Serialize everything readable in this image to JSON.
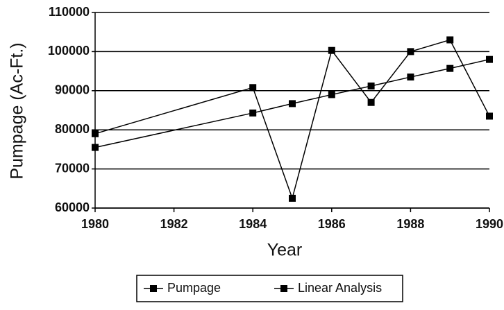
{
  "chart_data": {
    "type": "line",
    "x": [
      1980,
      1984,
      1985,
      1986,
      1987,
      1988,
      1989,
      1990
    ],
    "series": [
      {
        "name": "Pumpage",
        "color": "#000000",
        "values": [
          79000,
          90800,
          62500,
          100300,
          87000,
          100000,
          103000,
          83500
        ]
      },
      {
        "name": "Linear Analysis",
        "color": "#000000",
        "values": [
          75500,
          84300,
          86700,
          89000,
          91200,
          93500,
          95700,
          98000
        ]
      }
    ],
    "xlabel": "Year",
    "ylabel": "Pumpage (Ac-Ft.)",
    "xlim": [
      1980,
      1990
    ],
    "xticks": [
      1980,
      1982,
      1984,
      1986,
      1988,
      1990
    ],
    "ylim": [
      60000,
      110000
    ],
    "yticks": [
      60000,
      70000,
      80000,
      90000,
      100000,
      110000
    ],
    "grid": true,
    "legend": "bottom"
  }
}
